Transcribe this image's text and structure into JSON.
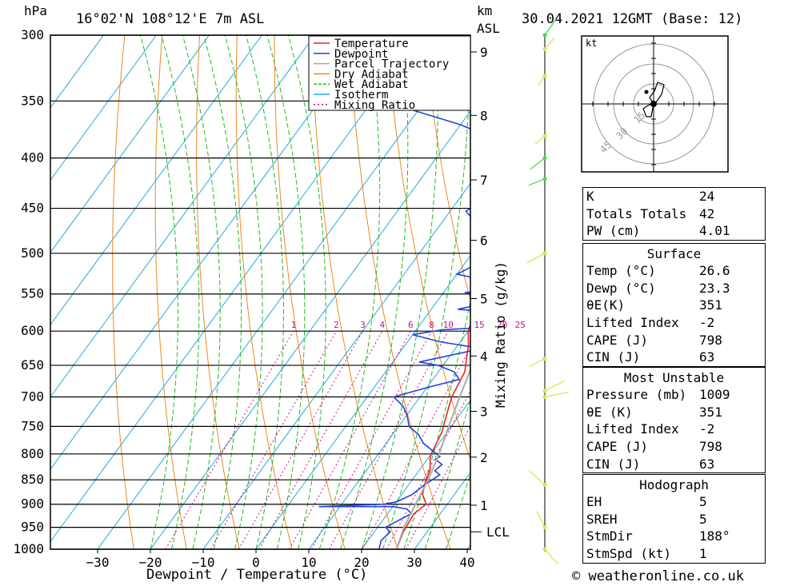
{
  "header": {
    "unit_left": "hPa",
    "location": "16°02'N 108°12'E 7m ASL",
    "unit_km": "km",
    "unit_asl": "ASL",
    "datetime": "30.04.2021 12GMT (Base: 12)"
  },
  "hodograph": {
    "unit": "kt",
    "ring_labels": [
      "15",
      "30",
      "45"
    ]
  },
  "footer": {
    "copyright": "© weatheronline.co.uk"
  },
  "chart_data": {
    "type": "line",
    "title": "16°02'N 108°12'E 7m ASL",
    "xlabel": "Dewpoint / Temperature (°C)",
    "ylabel": "hPa",
    "y2label": "Mixing Ratio (g/kg)",
    "xlim": [
      -40,
      40
    ],
    "ylim": [
      1000,
      300
    ],
    "x_ticks": [
      "-30",
      "-20",
      "-10",
      "0",
      "10",
      "20",
      "30",
      "40"
    ],
    "pressure_levels": [
      "300",
      "350",
      "400",
      "450",
      "500",
      "550",
      "600",
      "650",
      "700",
      "750",
      "800",
      "850",
      "900",
      "950",
      "1000"
    ],
    "km_ticks": [
      {
        "label": "9",
        "p": 312
      },
      {
        "label": "8",
        "p": 362
      },
      {
        "label": "7",
        "p": 421
      },
      {
        "label": "6",
        "p": 485
      },
      {
        "label": "5",
        "p": 556
      },
      {
        "label": "4",
        "p": 636
      },
      {
        "label": "3",
        "p": 724
      },
      {
        "label": "2",
        "p": 806
      },
      {
        "label": "1",
        "p": 902
      }
    ],
    "lcl": {
      "label": "LCL",
      "p": 960
    },
    "mixing_ratio_labels": [
      "1",
      "2",
      "3",
      "4",
      "6",
      "8",
      "10",
      "15",
      "20",
      "25"
    ],
    "legend": [
      "Temperature",
      "Dewpoint",
      "Parcel Trajectory",
      "Dry Adiabat",
      "Wet Adiabat",
      "Isotherm",
      "Mixing Ratio"
    ],
    "colors": {
      "temperature": "#ee2222",
      "dewpoint": "#2244dd",
      "parcel": "#aaaaaa",
      "dry_adiabat": "#ee8822",
      "wet_adiabat": "#22bb22",
      "isotherm": "#22aadd",
      "mixing_ratio": "#cc1188"
    },
    "series": [
      {
        "name": "Temperature",
        "points": [
          [
            26.6,
            1000
          ],
          [
            25.5,
            960
          ],
          [
            25,
            920
          ],
          [
            26,
            900
          ],
          [
            24,
            880
          ],
          [
            23,
            860
          ],
          [
            22,
            830
          ],
          [
            20.5,
            810
          ],
          [
            20,
            800
          ],
          [
            19.5,
            780
          ],
          [
            19,
            760
          ],
          [
            18,
            740
          ],
          [
            17,
            720
          ],
          [
            16,
            700
          ],
          [
            15.5,
            680
          ],
          [
            15,
            660
          ],
          [
            13.5,
            640
          ],
          [
            12,
            620
          ],
          [
            10,
            600
          ],
          [
            9,
            580
          ],
          [
            8,
            560
          ],
          [
            7,
            540
          ],
          [
            6,
            520
          ],
          [
            4.5,
            500
          ],
          [
            2,
            470
          ],
          [
            0,
            450
          ],
          [
            -2,
            430
          ],
          [
            -5,
            410
          ],
          [
            -7,
            395
          ],
          [
            -10,
            380
          ],
          [
            -14,
            360
          ],
          [
            -18,
            340
          ],
          [
            -22,
            320
          ],
          [
            -26,
            305
          ]
        ]
      },
      {
        "name": "Dewpoint",
        "points": [
          [
            23.3,
            1000
          ],
          [
            22.5,
            980
          ],
          [
            23,
            960
          ],
          [
            21.5,
            950
          ],
          [
            24.5,
            920
          ],
          [
            23,
            910
          ],
          [
            20,
            905
          ],
          [
            6,
            905
          ],
          [
            18,
            900
          ],
          [
            20,
            895
          ],
          [
            22,
            880
          ],
          [
            23,
            860
          ],
          [
            24.5,
            840
          ],
          [
            23,
            832
          ],
          [
            23.5,
            820
          ],
          [
            21.5,
            810
          ],
          [
            22,
            805
          ],
          [
            17,
            780
          ],
          [
            15,
            765
          ],
          [
            12,
            750
          ],
          [
            10,
            730
          ],
          [
            8,
            715
          ],
          [
            5,
            700
          ],
          [
            10,
            685
          ],
          [
            15,
            672
          ],
          [
            13,
            660
          ],
          [
            9,
            650
          ],
          [
            5,
            645
          ],
          [
            15,
            625
          ],
          [
            6,
            615
          ],
          [
            0,
            605
          ],
          [
            5,
            598
          ],
          [
            17,
            593
          ],
          [
            17,
            585
          ],
          [
            13.5,
            575
          ],
          [
            5,
            570
          ],
          [
            14,
            555
          ],
          [
            4,
            548
          ],
          [
            20,
            543
          ],
          [
            8,
            535
          ],
          [
            0,
            525
          ],
          [
            3,
            510
          ],
          [
            7,
            500
          ],
          [
            -1,
            475
          ],
          [
            -7,
            453
          ],
          [
            -4,
            435
          ],
          [
            1,
            418
          ],
          [
            5,
            400
          ],
          [
            -10,
            385
          ],
          [
            -20,
            370
          ],
          [
            -38,
            350
          ],
          [
            -44,
            330
          ],
          [
            -46,
            320
          ],
          [
            -30,
            310
          ],
          [
            -27,
            305
          ],
          [
            -30,
            300
          ]
        ]
      },
      {
        "name": "Parcel Trajectory",
        "points": [
          [
            26.6,
            1000
          ],
          [
            25,
            950
          ],
          [
            24,
            900
          ],
          [
            23,
            850
          ],
          [
            21.5,
            800
          ],
          [
            19.5,
            750
          ],
          [
            17.5,
            700
          ],
          [
            15.5,
            650
          ],
          [
            13,
            600
          ],
          [
            10,
            550
          ],
          [
            6.5,
            500
          ],
          [
            3,
            460
          ],
          [
            -1,
            425
          ],
          [
            -4,
            400
          ],
          [
            -8,
            375
          ],
          [
            -12,
            350
          ],
          [
            -17,
            325
          ],
          [
            -20,
            310
          ]
        ]
      }
    ]
  },
  "indices": [
    {
      "label": "K",
      "value": "24"
    },
    {
      "label": "Totals Totals",
      "value": "42"
    },
    {
      "label": "PW (cm)",
      "value": "4.01"
    }
  ],
  "surface": {
    "title": "Surface",
    "rows": [
      {
        "label": "Temp (°C)",
        "value": "26.6"
      },
      {
        "label": "Dewp (°C)",
        "value": "23.3"
      },
      {
        "label": "θE(K)",
        "value": "351"
      },
      {
        "label": "Lifted Index",
        "value": "-2"
      },
      {
        "label": "CAPE (J)",
        "value": "798"
      },
      {
        "label": "CIN (J)",
        "value": "63"
      }
    ]
  },
  "most_unstable": {
    "title": "Most Unstable",
    "rows": [
      {
        "label": "Pressure (mb)",
        "value": "1009"
      },
      {
        "label": "θE (K)",
        "value": "351"
      },
      {
        "label": "Lifted Index",
        "value": "-2"
      },
      {
        "label": "CAPE (J)",
        "value": "798"
      },
      {
        "label": "CIN (J)",
        "value": "63"
      }
    ]
  },
  "hodograph_stats": {
    "title": "Hodograph",
    "rows": [
      {
        "label": "EH",
        "value": "5"
      },
      {
        "label": "SREH",
        "value": "5"
      },
      {
        "label": "StmDir",
        "value": "188°"
      },
      {
        "label": "StmSpd (kt)",
        "value": "1"
      }
    ]
  }
}
